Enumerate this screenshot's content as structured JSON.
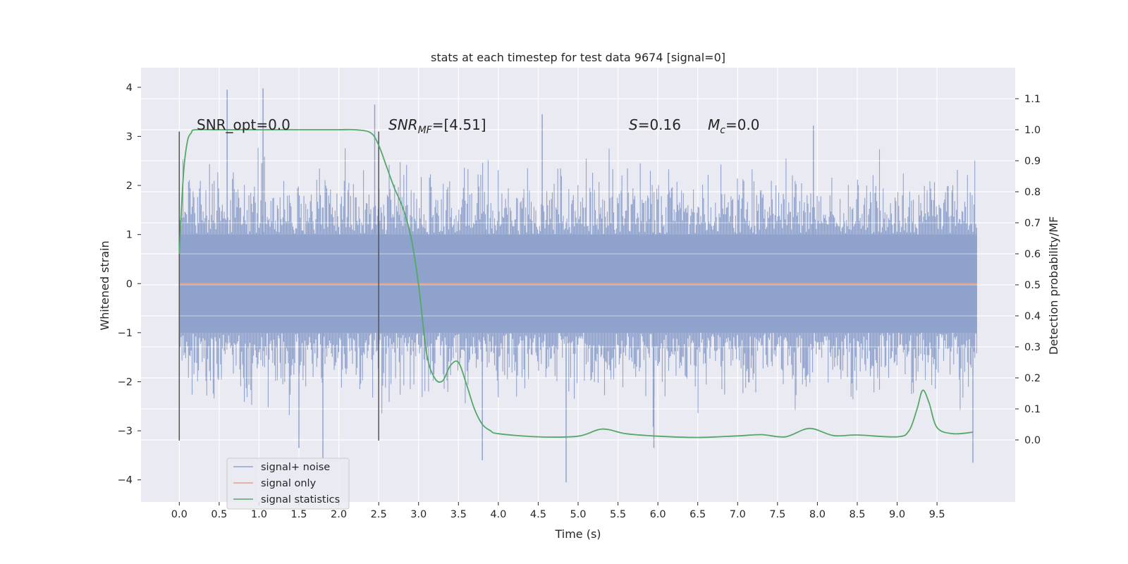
{
  "chart_data": {
    "type": "line",
    "title": "stats at each timestep for test data 9674 [signal=0]",
    "xlabel": "Time (s)",
    "ylabel": "Whitened strain",
    "ylabel_right": "Detection probability/MF",
    "xlim": [
      -0.48,
      10.48
    ],
    "ylim": [
      -4.45,
      4.4
    ],
    "ylim_right": [
      -0.2,
      1.2
    ],
    "x_ticks": [
      "0.0",
      "0.5",
      "1.0",
      "1.5",
      "2.0",
      "2.5",
      "3.0",
      "3.5",
      "4.0",
      "4.5",
      "5.0",
      "5.5",
      "6.0",
      "6.5",
      "7.0",
      "7.5",
      "8.0",
      "8.5",
      "9.0",
      "9.5"
    ],
    "y_ticks": [
      "4",
      "3",
      "2",
      "1",
      "0",
      "−1",
      "−2",
      "−3",
      "−4"
    ],
    "y_ticks_right": [
      "1.1",
      "1.0",
      "0.9",
      "0.8",
      "0.7",
      "0.6",
      "0.5",
      "0.4",
      "0.3",
      "0.2",
      "0.1",
      "0.0"
    ],
    "grid": true,
    "legend_position": "lower-left",
    "annotations": {
      "snr_opt": "SNR_opt=0.0",
      "snr_mf_text": "=[4.51]",
      "snr_mf_sym": "SNR",
      "snr_mf_sub": "MF",
      "s_sym": "S",
      "s_text": "=0.16",
      "mc_sym": "M",
      "mc_sub": "c",
      "mc_text": "=0.0"
    },
    "vlines": [
      0.0,
      2.5
    ],
    "series": [
      {
        "name": "signal+ noise",
        "color": "#8fa2cc",
        "axis": "left",
        "t_start": 0.0,
        "t_end": 10.0,
        "band": [
          -1.0,
          1.0
        ],
        "extremes": [
          [
            0.6,
            3.95
          ],
          [
            1.05,
            3.98
          ],
          [
            2.45,
            3.65
          ],
          [
            1.8,
            -3.55
          ],
          [
            4.85,
            -4.05
          ],
          [
            3.8,
            -3.6
          ],
          [
            9.95,
            -3.65
          ],
          [
            1.5,
            -3.35
          ],
          [
            5.95,
            -3.35
          ],
          [
            4.55,
            3.45
          ],
          [
            7.95,
            3.22
          ]
        ]
      },
      {
        "name": "signal only",
        "color": "#e8a087",
        "axis": "left",
        "x": [
          0.0,
          10.0
        ],
        "y": [
          0.0,
          0.0
        ]
      },
      {
        "name": "signal statistics",
        "color": "#55a868",
        "axis": "right",
        "x": [
          0.0,
          0.05,
          0.1,
          0.15,
          0.2,
          0.5,
          1.0,
          1.5,
          2.0,
          2.2,
          2.4,
          2.5,
          2.6,
          2.7,
          2.8,
          2.9,
          3.0,
          3.1,
          3.2,
          3.3,
          3.4,
          3.5,
          3.6,
          3.7,
          3.8,
          3.9,
          4.0,
          4.5,
          5.0,
          5.3,
          5.6,
          6.0,
          6.5,
          7.0,
          7.3,
          7.6,
          7.9,
          8.2,
          8.5,
          9.0,
          9.15,
          9.25,
          9.32,
          9.4,
          9.5,
          9.7,
          9.95
        ],
        "y": [
          0.6,
          0.85,
          0.96,
          0.99,
          1.0,
          1.0,
          1.0,
          1.0,
          1.0,
          1.0,
          0.99,
          0.95,
          0.88,
          0.81,
          0.75,
          0.66,
          0.5,
          0.28,
          0.2,
          0.19,
          0.24,
          0.25,
          0.18,
          0.1,
          0.05,
          0.03,
          0.02,
          0.01,
          0.012,
          0.035,
          0.02,
          0.012,
          0.008,
          0.013,
          0.017,
          0.01,
          0.037,
          0.014,
          0.016,
          0.01,
          0.03,
          0.1,
          0.16,
          0.12,
          0.04,
          0.02,
          0.025
        ]
      }
    ]
  }
}
